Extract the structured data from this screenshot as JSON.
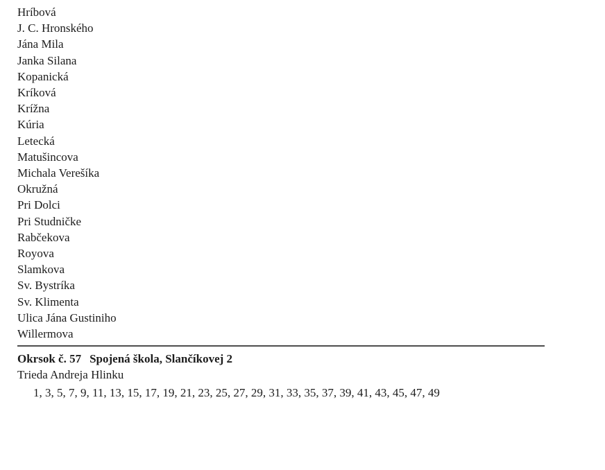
{
  "streets": [
    "Hríbová",
    "J. C. Hronského",
    "Jána Mila",
    "Janka Silana",
    "Kopanická",
    "Kríková",
    "Krížna",
    "Kúria",
    "Letecká",
    "Matušincova",
    "Michala Verešíka",
    "Okružná",
    "Pri Dolci",
    "Pri Studničke",
    "Rabčekova",
    "Royova",
    "Slamkova",
    "Sv. Bystríka",
    "Sv. Klimenta",
    "Ulica Jána Gustiniho",
    "Willermova"
  ],
  "district": {
    "label": "Okrsok č. 57",
    "location": "Spojená škola, Slančíkovej 2",
    "street": "Trieda Andreja Hlinku",
    "numbers": "1, 3, 5, 7, 9, 11, 13, 15, 17, 19, 21, 23, 25, 27, 29, 31, 33, 35, 37, 39, 41, 43, 45, 47, 49"
  }
}
